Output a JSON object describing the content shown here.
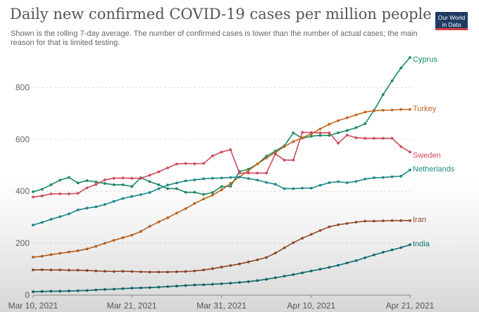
{
  "title": "Daily new confirmed COVID-19 cases per million people",
  "subtitle": "Shown is the rolling 7-day average. The number of confirmed cases is lower than the number of actual cases; the main reason for that is limited testing.",
  "logo": {
    "line1": "Our World",
    "line2": "in Data"
  },
  "chart_data": {
    "type": "line",
    "title": "Daily new confirmed COVID-19 cases per million people",
    "xlabel": "",
    "ylabel": "",
    "x_tick_labels": [
      "Mar 10, 2021",
      "Mar 21, 2021",
      "Mar 31, 2021",
      "Apr 10, 2021",
      "Apr 21, 2021"
    ],
    "x_tick_days": [
      0,
      11,
      21,
      31,
      42
    ],
    "y_ticks": [
      0,
      200,
      400,
      600,
      800
    ],
    "ylim": [
      0,
      920
    ],
    "xlim": [
      0,
      42
    ],
    "grid": true,
    "legend": "inline-right",
    "series": [
      {
        "name": "Cyprus",
        "color": "#1a8a5e",
        "values": [
          398,
          408,
          425,
          443,
          453,
          432,
          441,
          436,
          430,
          425,
          425,
          418,
          452,
          437,
          425,
          410,
          410,
          396,
          396,
          388,
          395,
          418,
          419,
          476,
          485,
          505,
          535,
          555,
          575,
          625,
          604,
          612,
          615,
          615,
          625,
          634,
          645,
          660,
          712,
          772,
          825,
          875,
          915
        ]
      },
      {
        "name": "Turkey",
        "color": "#c0651f",
        "values": [
          146,
          150,
          156,
          161,
          166,
          171,
          178,
          188,
          200,
          211,
          221,
          231,
          245,
          265,
          282,
          298,
          316,
          333,
          353,
          370,
          385,
          405,
          430,
          455,
          480,
          505,
          528,
          549,
          572,
          591,
          606,
          621,
          640,
          658,
          672,
          683,
          694,
          705,
          710,
          712,
          713,
          715,
          715
        ]
      },
      {
        "name": "Sweden",
        "color": "#d0495a",
        "values": [
          378,
          382,
          390,
          390,
          390,
          392,
          413,
          426,
          444,
          450,
          451,
          450,
          450,
          462,
          475,
          490,
          505,
          507,
          506,
          507,
          536,
          551,
          560,
          470,
          470,
          470,
          470,
          544,
          520,
          520,
          627,
          626,
          625,
          625,
          585,
          616,
          606,
          604,
          604,
          604,
          604,
          572,
          551
        ]
      },
      {
        "name": "Netherlands",
        "color": "#1d8a8a",
        "values": [
          270,
          280,
          292,
          302,
          313,
          328,
          335,
          340,
          349,
          361,
          372,
          380,
          387,
          395,
          410,
          424,
          432,
          440,
          444,
          448,
          450,
          451,
          453,
          455,
          449,
          443,
          434,
          427,
          410,
          410,
          412,
          412,
          423,
          433,
          437,
          433,
          438,
          447,
          452,
          453,
          456,
          458,
          482
        ]
      },
      {
        "name": "Iran",
        "color": "#9a4e2a",
        "values": [
          97,
          98,
          97,
          97,
          96,
          96,
          95,
          93,
          92,
          91,
          92,
          91,
          90,
          89,
          89,
          89,
          90,
          91,
          93,
          97,
          102,
          108,
          114,
          120,
          128,
          136,
          145,
          162,
          182,
          202,
          219,
          234,
          249,
          263,
          271,
          276,
          281,
          285,
          285,
          286,
          287,
          287,
          287
        ]
      },
      {
        "name": "India",
        "color": "#11757b",
        "values": [
          13,
          14,
          15,
          15,
          16,
          17,
          18,
          20,
          22,
          23,
          25,
          27,
          28,
          29,
          31,
          33,
          35,
          37,
          39,
          40,
          42,
          44,
          46,
          49,
          52,
          56,
          61,
          67,
          73,
          79,
          86,
          93,
          100,
          107,
          115,
          124,
          133,
          144,
          155,
          165,
          174,
          183,
          194
        ]
      }
    ]
  }
}
